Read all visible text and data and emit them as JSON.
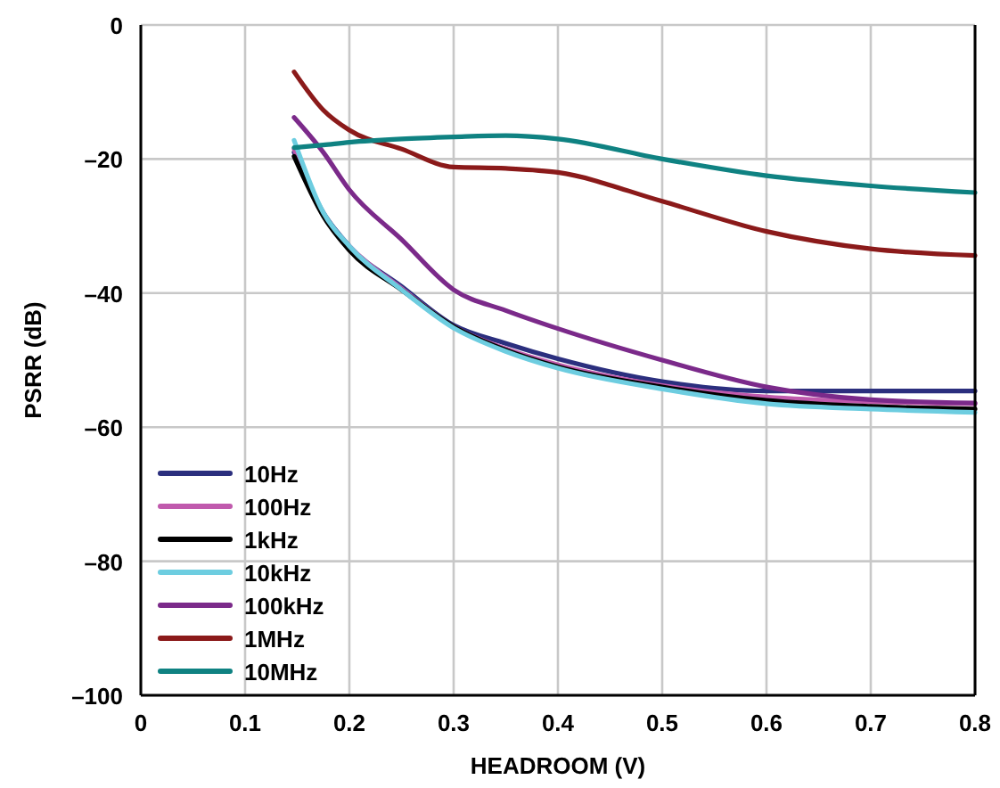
{
  "chart_data": {
    "type": "line",
    "xlabel": "HEADROOM (V)",
    "ylabel": "PSRR (dB)",
    "xlim": [
      0,
      0.8
    ],
    "ylim": [
      -100,
      0
    ],
    "xticks": [
      0,
      0.1,
      0.2,
      0.3,
      0.4,
      0.5,
      0.6,
      0.7,
      0.8
    ],
    "yticks": [
      {
        "value": 0,
        "label": "0"
      },
      {
        "value": -20,
        "label": "–20"
      },
      {
        "value": -40,
        "label": "–40"
      },
      {
        "value": -60,
        "label": "–60"
      },
      {
        "value": -80,
        "label": "–80"
      },
      {
        "value": -100,
        "label": "–100"
      }
    ],
    "grid": true,
    "legend": "bottom left",
    "marker": "none",
    "line_style": "solid",
    "x": [
      0.147,
      0.175,
      0.2,
      0.25,
      0.3,
      0.35,
      0.4,
      0.5,
      0.6,
      0.7,
      0.8
    ],
    "series": [
      {
        "name": "10Hz",
        "color": "#2b2f7e",
        "values": [
          -19,
          -28,
          -33,
          -39,
          -44.8,
          -47.5,
          -49.8,
          -53.2,
          -54.6,
          -54.6,
          -54.6
        ]
      },
      {
        "name": "100Hz",
        "color": "#c05aad",
        "values": [
          -18.5,
          -28.3,
          -33,
          -39.3,
          -45,
          -48.3,
          -50.7,
          -53.8,
          -55.5,
          -56.2,
          -56.5
        ]
      },
      {
        "name": "1kHz",
        "color": "#000000",
        "values": [
          -19.6,
          -28.5,
          -33.6,
          -39.5,
          -45,
          -48.5,
          -51,
          -54,
          -56,
          -56.9,
          -57.3
        ]
      },
      {
        "name": "10kHz",
        "color": "#6dcde0",
        "values": [
          -17.2,
          -28,
          -33,
          -39.5,
          -45.2,
          -48.7,
          -51.2,
          -54.3,
          -56.5,
          -57.3,
          -57.8
        ]
      },
      {
        "name": "100kHz",
        "color": "#7b2a8a",
        "values": [
          -13.8,
          -19,
          -24.6,
          -32,
          -39.5,
          -42.6,
          -45.3,
          -50,
          -54,
          -55.9,
          -56.4
        ]
      },
      {
        "name": "1MHz",
        "color": "#8b1a1a",
        "values": [
          -7,
          -12.7,
          -15.7,
          -18.5,
          -21.2,
          -21.4,
          -22,
          -26.3,
          -30.8,
          -33.4,
          -34.4
        ]
      },
      {
        "name": "10MHz",
        "color": "#0f8282",
        "values": [
          -18.3,
          -17.9,
          -17.5,
          -17,
          -16.7,
          -16.5,
          -17,
          -20,
          -22.5,
          -24,
          -25
        ]
      }
    ]
  }
}
